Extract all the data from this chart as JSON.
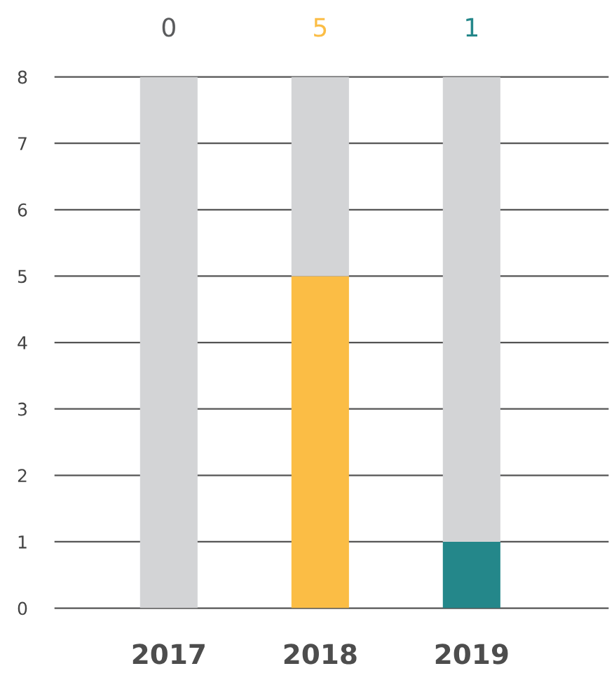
{
  "chart_data": {
    "type": "bar",
    "stacked": true,
    "categories": [
      "2017",
      "2018",
      "2019"
    ],
    "series": [
      {
        "colors": [
          "#5a5b5d",
          "#fbbd45",
          "#24878a"
        ],
        "values": [
          0,
          5,
          1
        ]
      },
      {
        "color": "#d3d4d6",
        "values": [
          8,
          3,
          7
        ]
      }
    ],
    "annotations": [
      {
        "text": "0",
        "x": "2017",
        "y": 8
      },
      {
        "text": "5",
        "x": "2018",
        "y": 8
      },
      {
        "text": "1",
        "x": "2019",
        "y": 8
      }
    ],
    "ylim": [
      0,
      8
    ],
    "yticks": [
      0,
      1,
      2,
      3,
      4,
      5,
      6,
      7,
      8
    ],
    "grid": "y",
    "legend": false
  }
}
